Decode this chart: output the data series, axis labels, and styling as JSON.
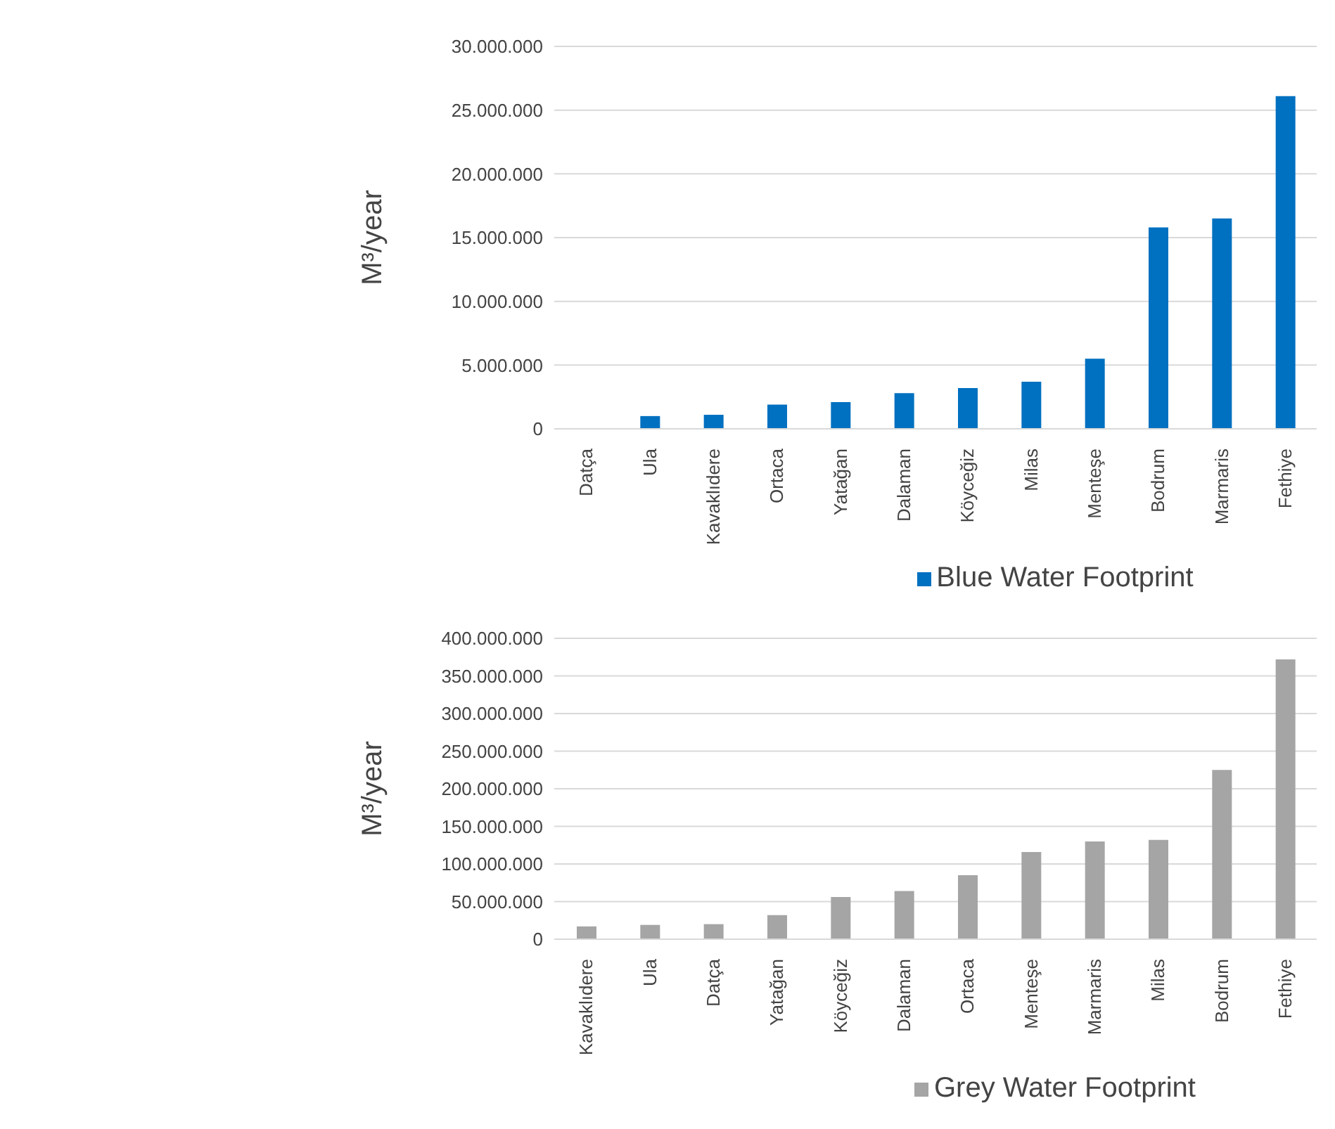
{
  "chart_data": [
    {
      "type": "bar",
      "ylabel": "M³/year",
      "categories": [
        "Datça",
        "Ula",
        "Kavaklıdere",
        "Ortaca",
        "Yatağan",
        "Dalaman",
        "Köyceğiz",
        "Milas",
        "Menteşe",
        "Bodrum",
        "Marmaris",
        "Fethiye"
      ],
      "series": [
        {
          "name": "Blue Water Footprint",
          "color": "#0070c0",
          "values": [
            0,
            1000000,
            1100000,
            1900000,
            2100000,
            2800000,
            3200000,
            3700000,
            5500000,
            15800000,
            16500000,
            26100000
          ]
        }
      ],
      "ylim": [
        0,
        30000000
      ],
      "yticks": [
        0,
        {
          "value": 5000000,
          "label": "5.000.000"
        },
        {
          "value": 10000000,
          "label": "10.000.000"
        },
        {
          "value": 15000000,
          "label": "15.000.000"
        },
        {
          "value": 20000000,
          "label": "20.000.000"
        },
        {
          "value": 25000000,
          "label": "25.000.000"
        },
        {
          "value": 30000000,
          "label": "30.000.000"
        }
      ],
      "grid": "y",
      "legend": "bottom"
    },
    {
      "type": "bar",
      "ylabel": "M³/year",
      "categories": [
        "Kavaklıdere",
        "Ula",
        "Datça",
        "Yatağan",
        "Köyceğiz",
        "Dalaman",
        "Ortaca",
        "Menteşe",
        "Marmaris",
        "Milas",
        "Bodrum",
        "Fethiye"
      ],
      "series": [
        {
          "name": "Grey Water Footprint",
          "color": "#a5a5a5",
          "values": [
            17000000,
            19000000,
            20000000,
            32000000,
            56000000,
            64000000,
            85000000,
            116000000,
            130000000,
            132000000,
            225000000,
            372000000
          ]
        }
      ],
      "ylim": [
        0,
        400000000
      ],
      "yticks": [
        0,
        {
          "value": 50000000,
          "label": "50.000.000"
        },
        {
          "value": 100000000,
          "label": "100.000.000"
        },
        {
          "value": 150000000,
          "label": "150.000.000"
        },
        {
          "value": 200000000,
          "label": "200.000.000"
        },
        {
          "value": 250000000,
          "label": "250.000.000"
        },
        {
          "value": 300000000,
          "label": "300.000.000"
        },
        {
          "value": 350000000,
          "label": "350.000.000"
        },
        {
          "value": 400000000,
          "label": "400.000.000"
        }
      ],
      "grid": "y",
      "legend": "bottom"
    }
  ]
}
